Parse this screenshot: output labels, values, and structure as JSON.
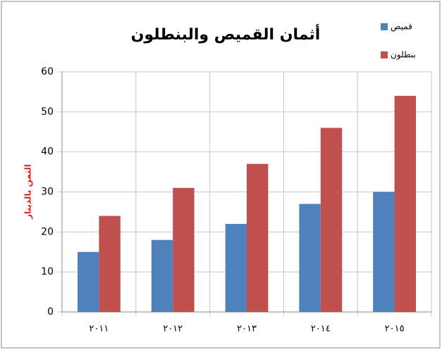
{
  "chart_data": {
    "type": "bar",
    "title": "أثمان القميص والبنطلون",
    "y_label": "الثمن بالدينار",
    "categories": [
      "٢٠١١",
      "٢٠١٢",
      "٢٠١٣",
      "٢٠١٤",
      "٢٠١٥"
    ],
    "series": [
      {
        "name": "قميص",
        "color": "#4f81bd",
        "values": [
          15,
          18,
          22,
          27,
          30
        ]
      },
      {
        "name": "بنطلون",
        "color": "#c0504d",
        "values": [
          24,
          31,
          37,
          46,
          54
        ]
      }
    ],
    "ylim": [
      0,
      60
    ],
    "yticks": [
      0,
      10,
      20,
      30,
      40,
      50,
      60
    ],
    "grid": true,
    "legend": "top-right"
  }
}
